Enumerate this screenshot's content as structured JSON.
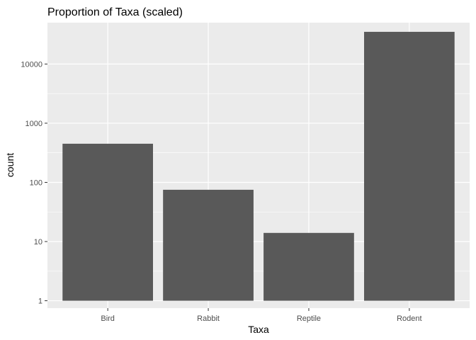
{
  "chart_data": {
    "type": "bar",
    "title": "Proportion of Taxa (scaled)",
    "xlabel": "Taxa",
    "ylabel": "count",
    "categories": [
      "Bird",
      "Rabbit",
      "Reptile",
      "Rodent"
    ],
    "values": [
      450,
      75,
      14,
      35000
    ],
    "y_scale": "log10",
    "ylim": [
      0.75,
      50000
    ],
    "y_ticks": [
      1,
      10,
      100,
      1000,
      10000
    ],
    "y_tick_labels": [
      "1",
      "10",
      "100",
      "1000",
      "10000"
    ],
    "grid": true,
    "colors": {
      "panel_background": "#EBEBEB",
      "grid": "#FFFFFF",
      "bar_fill": "#595959",
      "tick_label": "#4D4D4D",
      "tick_mark": "#333333"
    }
  }
}
